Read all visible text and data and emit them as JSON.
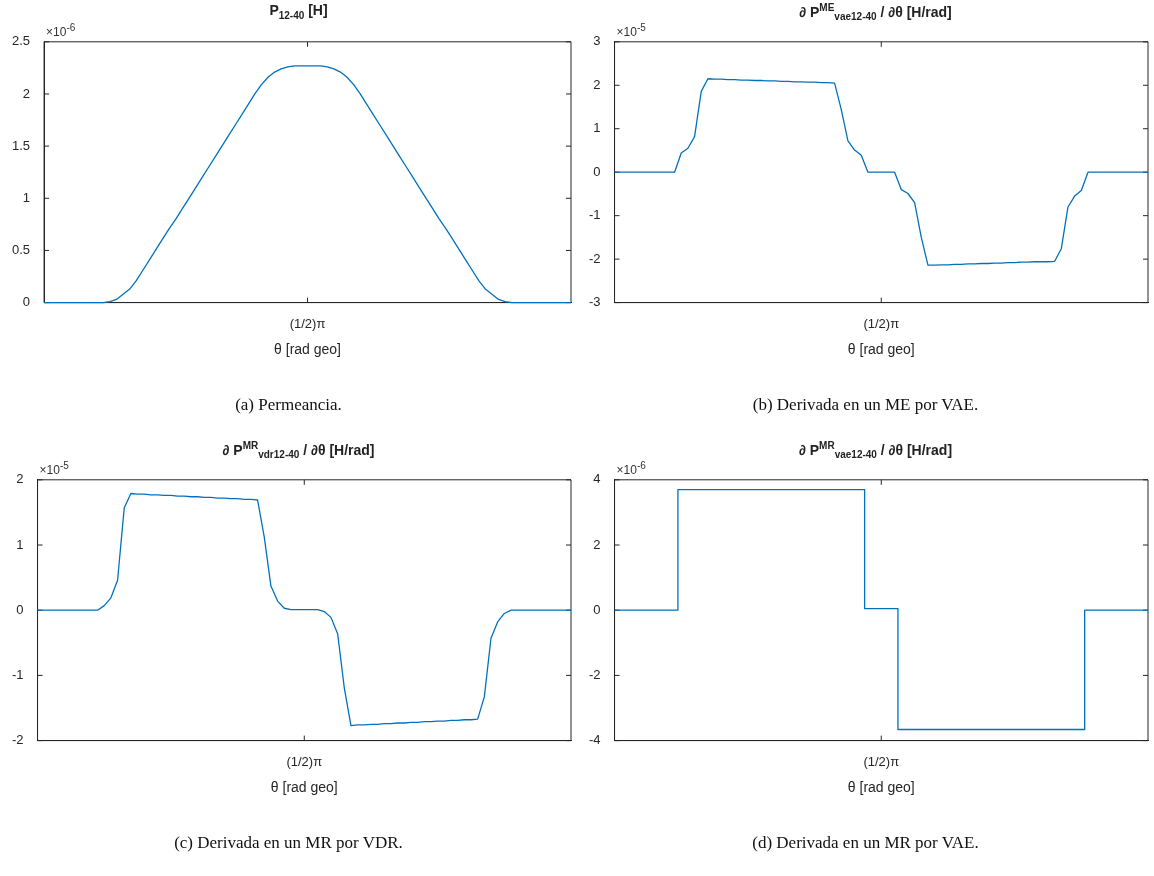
{
  "chart_data": [
    {
      "type": "line",
      "title": "P$_{12-40}$ [H]",
      "xlabel": "θ [rad geo]",
      "color": "#0072bd",
      "categories": [
        null,
        null,
        null,
        null,
        null,
        null,
        null,
        null,
        null,
        null,
        null,
        null,
        null,
        null,
        null,
        null,
        null,
        null,
        null,
        null,
        null,
        null,
        null,
        null,
        null,
        null,
        null,
        null,
        null,
        null,
        null,
        null,
        null,
        null,
        null,
        null,
        null,
        null,
        null,
        null,
        "(1/2)π",
        null,
        null,
        null,
        null,
        null,
        null,
        null,
        null,
        null,
        null,
        null,
        null,
        null,
        null,
        null,
        null,
        null,
        null,
        null,
        null,
        null,
        null,
        null,
        null,
        null,
        null,
        null,
        null,
        null,
        null,
        null,
        null,
        null,
        null,
        null,
        null,
        null,
        null,
        null,
        null
      ],
      "values": [
        0,
        0,
        0,
        0,
        0,
        0,
        0,
        0,
        0,
        0,
        0.01,
        0.03,
        0.08,
        0.13,
        0.21,
        0.31,
        0.41,
        0.51,
        0.61,
        0.71,
        0.8,
        0.9,
        1,
        1.1,
        1.2,
        1.3,
        1.4,
        1.5,
        1.6,
        1.7,
        1.8,
        1.9,
        2,
        2.09,
        2.16,
        2.21,
        2.24,
        2.26,
        2.27,
        2.27,
        2.27,
        2.27,
        2.27,
        2.26,
        2.24,
        2.21,
        2.16,
        2.09,
        2,
        1.9,
        1.8,
        1.7,
        1.6,
        1.5,
        1.4,
        1.3,
        1.2,
        1.1,
        1,
        0.9,
        0.8,
        0.71,
        0.61,
        0.51,
        0.41,
        0.31,
        0.21,
        0.13,
        0.08,
        0.03,
        0.01,
        0,
        0,
        0,
        0,
        0,
        0,
        0,
        0,
        0,
        0
      ],
      "ylim": [
        0,
        2.5
      ],
      "yticks": [
        0,
        0.5,
        1,
        1.5,
        2,
        2.5
      ],
      "annotations": [
        "×10$^{-6}$",
        "(a) Permeancia."
      ]
    },
    {
      "type": "line",
      "title": "∂ P$^{ME}$$_{vae12-40}$ / ∂θ [H/rad]",
      "xlabel": "θ [rad geo]",
      "color": "#0072bd",
      "categories": [
        null,
        null,
        null,
        null,
        null,
        null,
        null,
        null,
        null,
        null,
        null,
        null,
        null,
        null,
        null,
        null,
        null,
        null,
        null,
        null,
        null,
        null,
        null,
        null,
        null,
        null,
        null,
        null,
        null,
        null,
        null,
        null,
        null,
        null,
        null,
        null,
        null,
        null,
        null,
        null,
        "(1/2)π",
        null,
        null,
        null,
        null,
        null,
        null,
        null,
        null,
        null,
        null,
        null,
        null,
        null,
        null,
        null,
        null,
        null,
        null,
        null,
        null,
        null,
        null,
        null,
        null,
        null,
        null,
        null,
        null,
        null,
        null,
        null,
        null,
        null,
        null,
        null,
        null,
        null,
        null,
        null,
        null
      ],
      "values": [
        0,
        0,
        0,
        0,
        0,
        0,
        0,
        0,
        0,
        0,
        0.44,
        0.55,
        0.82,
        1.86,
        2.15,
        2.14,
        2.14,
        2.13,
        2.13,
        2.12,
        2.12,
        2.11,
        2.11,
        2.1,
        2.1,
        2.09,
        2.09,
        2.08,
        2.08,
        2.07,
        2.07,
        2.06,
        2.06,
        2.05,
        1.44,
        0.72,
        0.51,
        0.39,
        0,
        0,
        0,
        0,
        0,
        -0.4,
        -0.49,
        -0.7,
        -1.5,
        -2.14,
        -2.14,
        -2.13,
        -2.13,
        -2.12,
        -2.12,
        -2.11,
        -2.11,
        -2.1,
        -2.1,
        -2.09,
        -2.09,
        -2.08,
        -2.08,
        -2.07,
        -2.07,
        -2.06,
        -2.06,
        -2.06,
        -2.05,
        -1.76,
        -0.8,
        -0.55,
        -0.42,
        0,
        0,
        0,
        0,
        0,
        0,
        0,
        0,
        0,
        0
      ],
      "ylim": [
        -3,
        3
      ],
      "yticks": [
        -3,
        -2,
        -1,
        0,
        1,
        2,
        3
      ],
      "annotations": [
        "×10$^{-5}$",
        "(b) Derivada en un ME por VAE."
      ]
    },
    {
      "type": "line",
      "title": "∂ P$^{MR}$$_{vdr12-40}$ / ∂θ [H/rad]",
      "xlabel": "θ [rad geo]",
      "color": "#0072bd",
      "categories": [
        null,
        null,
        null,
        null,
        null,
        null,
        null,
        null,
        null,
        null,
        null,
        null,
        null,
        null,
        null,
        null,
        null,
        null,
        null,
        null,
        null,
        null,
        null,
        null,
        null,
        null,
        null,
        null,
        null,
        null,
        null,
        null,
        null,
        null,
        null,
        null,
        null,
        null,
        null,
        null,
        "(1/2)π",
        null,
        null,
        null,
        null,
        null,
        null,
        null,
        null,
        null,
        null,
        null,
        null,
        null,
        null,
        null,
        null,
        null,
        null,
        null,
        null,
        null,
        null,
        null,
        null,
        null,
        null,
        null,
        null,
        null,
        null,
        null,
        null,
        null,
        null,
        null,
        null,
        null,
        null,
        null,
        null
      ],
      "values": [
        0,
        0,
        0,
        0,
        0,
        0,
        0,
        0,
        0,
        0,
        0.07,
        0.19,
        0.46,
        1.57,
        1.79,
        1.78,
        1.78,
        1.77,
        1.77,
        1.76,
        1.76,
        1.75,
        1.75,
        1.74,
        1.74,
        1.73,
        1.73,
        1.72,
        1.72,
        1.71,
        1.71,
        1.7,
        1.7,
        1.69,
        1.12,
        0.37,
        0.14,
        0.03,
        0.01,
        0.01,
        0.01,
        0.01,
        0.01,
        -0.02,
        -0.11,
        -0.36,
        -1.19,
        -1.77,
        -1.76,
        -1.76,
        -1.75,
        -1.75,
        -1.74,
        -1.74,
        -1.73,
        -1.73,
        -1.72,
        -1.72,
        -1.71,
        -1.71,
        -1.7,
        -1.7,
        -1.69,
        -1.69,
        -1.68,
        -1.68,
        -1.67,
        -1.33,
        -0.43,
        -0.18,
        -0.05,
        0,
        0,
        0,
        0,
        0,
        0,
        0,
        0,
        0,
        0
      ],
      "ylim": [
        -2,
        2
      ],
      "yticks": [
        -2,
        -1,
        0,
        1,
        2
      ],
      "annotations": [
        "×10$^{-5}$",
        "(c) Derivada en un MR por VDR."
      ]
    },
    {
      "type": "step",
      "title": "∂ P$^{MR}$$_{vae12-40}$ / ∂θ [H/rad]",
      "xlabel": "θ [rad geo]",
      "color": "#0072bd",
      "categories": [
        null,
        null,
        null,
        null,
        null,
        null,
        null,
        null,
        null,
        null,
        null,
        null,
        null,
        null,
        null,
        null,
        null,
        null,
        null,
        null,
        null,
        null,
        null,
        null,
        null,
        null,
        null,
        null,
        null,
        null,
        null,
        null,
        null,
        null,
        null,
        null,
        null,
        null,
        null,
        null,
        "(1/2)π",
        null,
        null,
        null,
        null,
        null,
        null,
        null,
        null,
        null,
        null,
        null,
        null,
        null,
        null,
        null,
        null,
        null,
        null,
        null,
        null,
        null,
        null,
        null,
        null,
        null,
        null,
        null,
        null,
        null,
        null,
        null,
        null,
        null,
        null,
        null,
        null,
        null,
        null,
        null,
        null
      ],
      "values": [
        0,
        0,
        0,
        0,
        0,
        0,
        0,
        0,
        0,
        0,
        3.7,
        3.7,
        3.7,
        3.7,
        3.7,
        3.7,
        3.7,
        3.7,
        3.7,
        3.7,
        3.7,
        3.7,
        3.7,
        3.7,
        3.7,
        3.7,
        3.7,
        3.7,
        3.7,
        3.7,
        3.7,
        3.7,
        3.7,
        3.7,
        3.7,
        3.7,
        3.7,
        3.7,
        0.05,
        0.05,
        0.05,
        0.05,
        0.05,
        -3.66,
        -3.66,
        -3.66,
        -3.66,
        -3.66,
        -3.66,
        -3.66,
        -3.66,
        -3.66,
        -3.66,
        -3.66,
        -3.66,
        -3.66,
        -3.66,
        -3.66,
        -3.66,
        -3.66,
        -3.66,
        -3.66,
        -3.66,
        -3.66,
        -3.66,
        -3.66,
        -3.66,
        -3.66,
        -3.66,
        -3.66,
        -3.66,
        0,
        0,
        0,
        0,
        0,
        0,
        0,
        0,
        0,
        0
      ],
      "ylim": [
        -4,
        4
      ],
      "yticks": [
        -4,
        -2,
        0,
        2,
        4
      ],
      "annotations": [
        "×10$^{-6}$",
        "(d) Derivada en un MR por VAE."
      ]
    }
  ]
}
